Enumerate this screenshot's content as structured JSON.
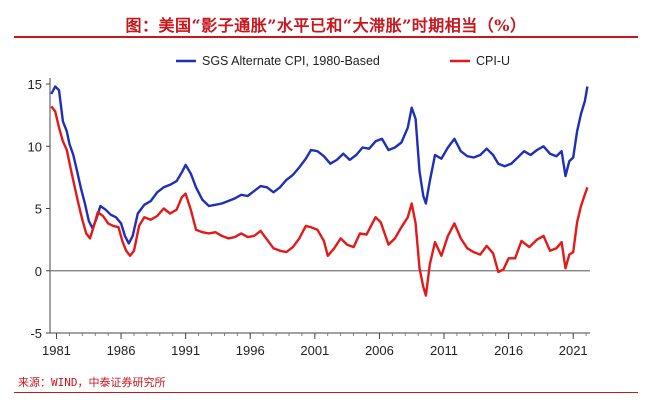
{
  "page": {
    "title": "图：美国“影子通胀”水平已和“大滞胀”时期相当（%）",
    "source": "来源：WIND，中泰证券研究所"
  },
  "colors": {
    "title": "#c8161d",
    "sgs": "#1f2fb8",
    "cpi": "#e21a1a",
    "zero_line": "#777777"
  },
  "chart_data": {
    "type": "line",
    "title": "",
    "xlabel": "",
    "ylabel": "",
    "xlim": [
      1980.5,
      2022.3
    ],
    "ylim": [
      -5,
      15
    ],
    "x_ticks": [
      1981,
      1986,
      1991,
      1996,
      2001,
      2006,
      2011,
      2016,
      2021
    ],
    "y_ticks": [
      -5,
      0,
      5,
      10,
      15
    ],
    "grid": false,
    "legend": "top-center",
    "series": [
      {
        "name": "SGS Alternate CPI, 1980-Based",
        "color": "#1f2fb8",
        "points": [
          [
            1980.6,
            14.2
          ],
          [
            1980.9,
            14.8
          ],
          [
            1981.2,
            14.5
          ],
          [
            1981.5,
            12.0
          ],
          [
            1981.8,
            11.2
          ],
          [
            1982.0,
            10.2
          ],
          [
            1982.3,
            9.3
          ],
          [
            1982.6,
            8.0
          ],
          [
            1982.9,
            6.6
          ],
          [
            1983.2,
            5.4
          ],
          [
            1983.5,
            4.0
          ],
          [
            1983.8,
            3.4
          ],
          [
            1984.1,
            4.2
          ],
          [
            1984.4,
            5.2
          ],
          [
            1984.8,
            4.9
          ],
          [
            1985.2,
            4.5
          ],
          [
            1985.6,
            4.3
          ],
          [
            1986.0,
            3.8
          ],
          [
            1986.3,
            2.8
          ],
          [
            1986.6,
            2.2
          ],
          [
            1986.9,
            2.8
          ],
          [
            1987.3,
            4.6
          ],
          [
            1987.8,
            5.3
          ],
          [
            1988.3,
            5.6
          ],
          [
            1988.8,
            6.3
          ],
          [
            1989.3,
            6.7
          ],
          [
            1989.8,
            6.9
          ],
          [
            1990.3,
            7.2
          ],
          [
            1990.7,
            7.9
          ],
          [
            1991.0,
            8.5
          ],
          [
            1991.4,
            7.8
          ],
          [
            1991.8,
            6.7
          ],
          [
            1992.3,
            5.7
          ],
          [
            1992.8,
            5.2
          ],
          [
            1993.3,
            5.3
          ],
          [
            1993.8,
            5.4
          ],
          [
            1994.3,
            5.6
          ],
          [
            1994.8,
            5.8
          ],
          [
            1995.3,
            6.1
          ],
          [
            1995.8,
            6.0
          ],
          [
            1996.3,
            6.4
          ],
          [
            1996.8,
            6.8
          ],
          [
            1997.3,
            6.7
          ],
          [
            1997.8,
            6.3
          ],
          [
            1998.3,
            6.7
          ],
          [
            1998.8,
            7.3
          ],
          [
            1999.3,
            7.7
          ],
          [
            1999.8,
            8.3
          ],
          [
            2000.3,
            9.0
          ],
          [
            2000.7,
            9.7
          ],
          [
            2001.2,
            9.6
          ],
          [
            2001.7,
            9.2
          ],
          [
            2002.2,
            8.6
          ],
          [
            2002.7,
            8.9
          ],
          [
            2003.2,
            9.4
          ],
          [
            2003.7,
            8.9
          ],
          [
            2004.2,
            9.3
          ],
          [
            2004.7,
            9.9
          ],
          [
            2005.2,
            9.8
          ],
          [
            2005.7,
            10.4
          ],
          [
            2006.2,
            10.6
          ],
          [
            2006.7,
            9.7
          ],
          [
            2007.2,
            9.9
          ],
          [
            2007.7,
            10.3
          ],
          [
            2008.2,
            11.5
          ],
          [
            2008.5,
            13.1
          ],
          [
            2008.8,
            12.2
          ],
          [
            2009.1,
            8.0
          ],
          [
            2009.4,
            6.0
          ],
          [
            2009.6,
            5.4
          ],
          [
            2009.9,
            7.2
          ],
          [
            2010.3,
            9.3
          ],
          [
            2010.8,
            9.0
          ],
          [
            2011.3,
            9.9
          ],
          [
            2011.8,
            10.6
          ],
          [
            2012.3,
            9.6
          ],
          [
            2012.8,
            9.2
          ],
          [
            2013.3,
            9.1
          ],
          [
            2013.8,
            9.3
          ],
          [
            2014.3,
            9.8
          ],
          [
            2014.8,
            9.3
          ],
          [
            2015.2,
            8.6
          ],
          [
            2015.7,
            8.4
          ],
          [
            2016.2,
            8.6
          ],
          [
            2016.7,
            9.1
          ],
          [
            2017.2,
            9.6
          ],
          [
            2017.7,
            9.3
          ],
          [
            2018.2,
            9.7
          ],
          [
            2018.7,
            10.0
          ],
          [
            2019.2,
            9.4
          ],
          [
            2019.7,
            9.2
          ],
          [
            2020.1,
            9.6
          ],
          [
            2020.4,
            7.6
          ],
          [
            2020.7,
            8.8
          ],
          [
            2021.0,
            9.1
          ],
          [
            2021.3,
            11.2
          ],
          [
            2021.6,
            12.6
          ],
          [
            2021.9,
            13.6
          ],
          [
            2022.1,
            14.8
          ]
        ]
      },
      {
        "name": "CPI-U",
        "color": "#e21a1a",
        "points": [
          [
            1980.6,
            13.2
          ],
          [
            1980.9,
            12.8
          ],
          [
            1981.2,
            11.5
          ],
          [
            1981.5,
            10.4
          ],
          [
            1981.8,
            9.7
          ],
          [
            1982.1,
            8.2
          ],
          [
            1982.4,
            6.8
          ],
          [
            1982.7,
            5.4
          ],
          [
            1983.0,
            4.1
          ],
          [
            1983.3,
            3.0
          ],
          [
            1983.6,
            2.6
          ],
          [
            1983.9,
            3.6
          ],
          [
            1984.2,
            4.7
          ],
          [
            1984.6,
            4.4
          ],
          [
            1985.0,
            3.8
          ],
          [
            1985.4,
            3.6
          ],
          [
            1985.8,
            3.5
          ],
          [
            1986.1,
            2.4
          ],
          [
            1986.4,
            1.6
          ],
          [
            1986.7,
            1.2
          ],
          [
            1987.0,
            1.6
          ],
          [
            1987.4,
            3.6
          ],
          [
            1987.8,
            4.3
          ],
          [
            1988.3,
            4.1
          ],
          [
            1988.8,
            4.4
          ],
          [
            1989.3,
            5.0
          ],
          [
            1989.8,
            4.6
          ],
          [
            1990.3,
            4.9
          ],
          [
            1990.7,
            5.9
          ],
          [
            1991.0,
            6.2
          ],
          [
            1991.4,
            4.9
          ],
          [
            1991.8,
            3.3
          ],
          [
            1992.3,
            3.1
          ],
          [
            1992.8,
            3.0
          ],
          [
            1993.3,
            3.1
          ],
          [
            1993.8,
            2.8
          ],
          [
            1994.3,
            2.6
          ],
          [
            1994.8,
            2.7
          ],
          [
            1995.3,
            3.0
          ],
          [
            1995.8,
            2.7
          ],
          [
            1996.3,
            2.8
          ],
          [
            1996.8,
            3.2
          ],
          [
            1997.3,
            2.5
          ],
          [
            1997.8,
            1.8
          ],
          [
            1998.3,
            1.6
          ],
          [
            1998.8,
            1.5
          ],
          [
            1999.3,
            1.9
          ],
          [
            1999.8,
            2.6
          ],
          [
            2000.3,
            3.6
          ],
          [
            2000.7,
            3.5
          ],
          [
            2001.2,
            3.3
          ],
          [
            2001.7,
            2.4
          ],
          [
            2002.0,
            1.2
          ],
          [
            2002.5,
            1.8
          ],
          [
            2003.0,
            2.6
          ],
          [
            2003.5,
            2.1
          ],
          [
            2004.0,
            1.9
          ],
          [
            2004.5,
            3.0
          ],
          [
            2005.0,
            2.9
          ],
          [
            2005.7,
            4.3
          ],
          [
            2006.1,
            3.9
          ],
          [
            2006.7,
            2.1
          ],
          [
            2007.2,
            2.6
          ],
          [
            2007.7,
            3.5
          ],
          [
            2008.2,
            4.3
          ],
          [
            2008.5,
            5.4
          ],
          [
            2008.8,
            3.8
          ],
          [
            2009.1,
            0.2
          ],
          [
            2009.4,
            -1.3
          ],
          [
            2009.6,
            -2.0
          ],
          [
            2009.9,
            0.5
          ],
          [
            2010.3,
            2.3
          ],
          [
            2010.8,
            1.2
          ],
          [
            2011.3,
            2.8
          ],
          [
            2011.8,
            3.8
          ],
          [
            2012.3,
            2.6
          ],
          [
            2012.8,
            1.8
          ],
          [
            2013.3,
            1.5
          ],
          [
            2013.8,
            1.3
          ],
          [
            2014.3,
            2.0
          ],
          [
            2014.8,
            1.4
          ],
          [
            2015.2,
            -0.1
          ],
          [
            2015.6,
            0.1
          ],
          [
            2016.0,
            1.0
          ],
          [
            2016.5,
            1.0
          ],
          [
            2017.0,
            2.4
          ],
          [
            2017.6,
            1.9
          ],
          [
            2018.2,
            2.5
          ],
          [
            2018.7,
            2.8
          ],
          [
            2019.2,
            1.6
          ],
          [
            2019.7,
            1.8
          ],
          [
            2020.1,
            2.3
          ],
          [
            2020.4,
            0.2
          ],
          [
            2020.7,
            1.3
          ],
          [
            2021.0,
            1.5
          ],
          [
            2021.3,
            3.9
          ],
          [
            2021.6,
            5.2
          ],
          [
            2021.9,
            6.1
          ],
          [
            2022.1,
            6.7
          ]
        ]
      }
    ]
  }
}
